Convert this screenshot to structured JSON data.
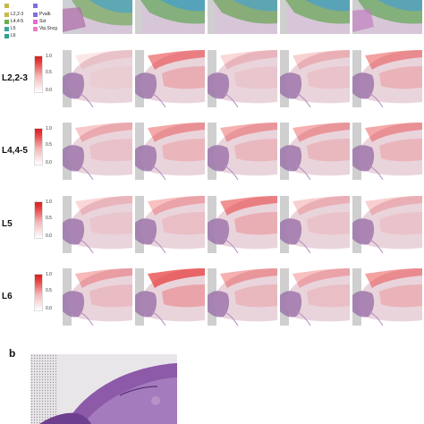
{
  "legend": {
    "left_items": [
      {
        "label": "L2,2-3",
        "color": "#c8b84a"
      },
      {
        "label": "L4,4-5",
        "color": "#6ab04c"
      },
      {
        "label": "L5",
        "color": "#3aa3a0"
      },
      {
        "label": "L6",
        "color": "#2aa58e"
      }
    ],
    "right_items": [
      {
        "label": "Pvalb",
        "color": "#7b6fe0"
      },
      {
        "label": "Sst",
        "color": "#e86ad0"
      },
      {
        "label": "Vip,Sncg",
        "color": "#f07bc8"
      }
    ]
  },
  "rows": [
    {
      "label": "L2,2-3"
    },
    {
      "label": "L4,4-5"
    },
    {
      "label": "L5"
    },
    {
      "label": "L6"
    }
  ],
  "colorbar": {
    "max": "1.0",
    "mid": "0.5",
    "min": "0.0"
  },
  "panel_b_label": "b",
  "colors": {
    "tissue_fill": "#ead4dc",
    "tissue_dark": "#9a6fa8",
    "heat": "#e83a3a",
    "grid": "#c9c9c9"
  }
}
